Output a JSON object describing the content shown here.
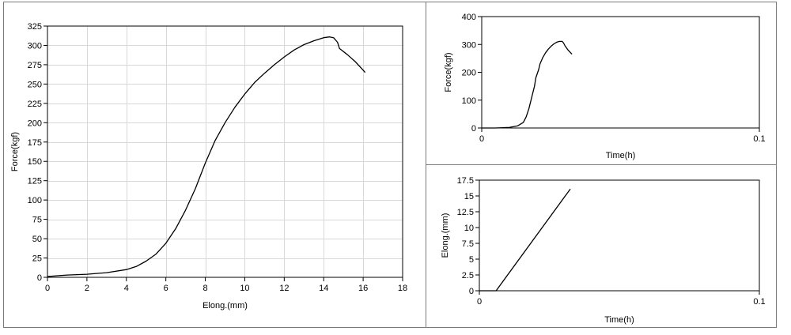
{
  "chart_data": [
    {
      "id": "force-elong",
      "type": "line",
      "xlabel": "Elong.(mm)",
      "ylabel": "Force(kgf)",
      "xlim": [
        0,
        18
      ],
      "ylim": [
        0,
        325
      ],
      "xticks": [
        0,
        2,
        4,
        6,
        8,
        10,
        12,
        14,
        16,
        18
      ],
      "yticks": [
        0,
        25,
        50,
        75,
        100,
        125,
        150,
        175,
        200,
        225,
        250,
        275,
        300,
        325
      ],
      "grid": true,
      "series": [
        {
          "x": [
            0,
            0.5,
            1,
            2,
            3,
            4,
            4.5,
            5,
            5.5,
            6,
            6.5,
            7,
            7.5,
            8,
            8.5,
            9,
            9.5,
            10,
            10.5,
            11,
            11.5,
            12,
            12.5,
            13,
            13.5,
            14,
            14.3,
            14.5,
            14.7,
            14.8,
            15.2,
            15.6,
            16,
            16.1
          ],
          "y": [
            1,
            2,
            3,
            4,
            6,
            10,
            14,
            21,
            30,
            44,
            63,
            87,
            115,
            148,
            177,
            200,
            220,
            237,
            252,
            264,
            275,
            285,
            294,
            301,
            306,
            310,
            311,
            310,
            304,
            296,
            288,
            279,
            268,
            265
          ]
        }
      ]
    },
    {
      "id": "force-time",
      "type": "line",
      "xlabel": "Time(h)",
      "ylabel": "Force(kgf)",
      "xlim": [
        0,
        0.1
      ],
      "ylim": [
        0,
        400
      ],
      "xticks": [
        0,
        0.1
      ],
      "yticks": [
        0,
        100,
        200,
        300,
        400
      ],
      "grid": false,
      "series": [
        {
          "x": [
            0,
            0.005,
            0.01,
            0.013,
            0.015,
            0.016,
            0.017,
            0.018,
            0.019,
            0.0195,
            0.0205,
            0.021,
            0.022,
            0.023,
            0.024,
            0.025,
            0.026,
            0.027,
            0.028,
            0.029,
            0.0295,
            0.03,
            0.0305,
            0.031,
            0.0325
          ],
          "y": [
            0,
            0,
            2,
            8,
            20,
            40,
            70,
            110,
            150,
            180,
            210,
            230,
            253,
            270,
            283,
            294,
            302,
            308,
            311,
            311,
            305,
            295,
            288,
            281,
            265
          ]
        }
      ]
    },
    {
      "id": "elong-time",
      "type": "line",
      "xlabel": "Time(h)",
      "ylabel": "Elong.(mm)",
      "xlim": [
        0,
        0.1
      ],
      "ylim": [
        0,
        17.5
      ],
      "xticks": [
        0,
        0.1
      ],
      "yticks": [
        0,
        2.5,
        5,
        7.5,
        10,
        12.5,
        15,
        17.5
      ],
      "grid": false,
      "series": [
        {
          "x": [
            0,
            0.006,
            0.0325
          ],
          "y": [
            0,
            0,
            16.1
          ]
        }
      ]
    }
  ]
}
